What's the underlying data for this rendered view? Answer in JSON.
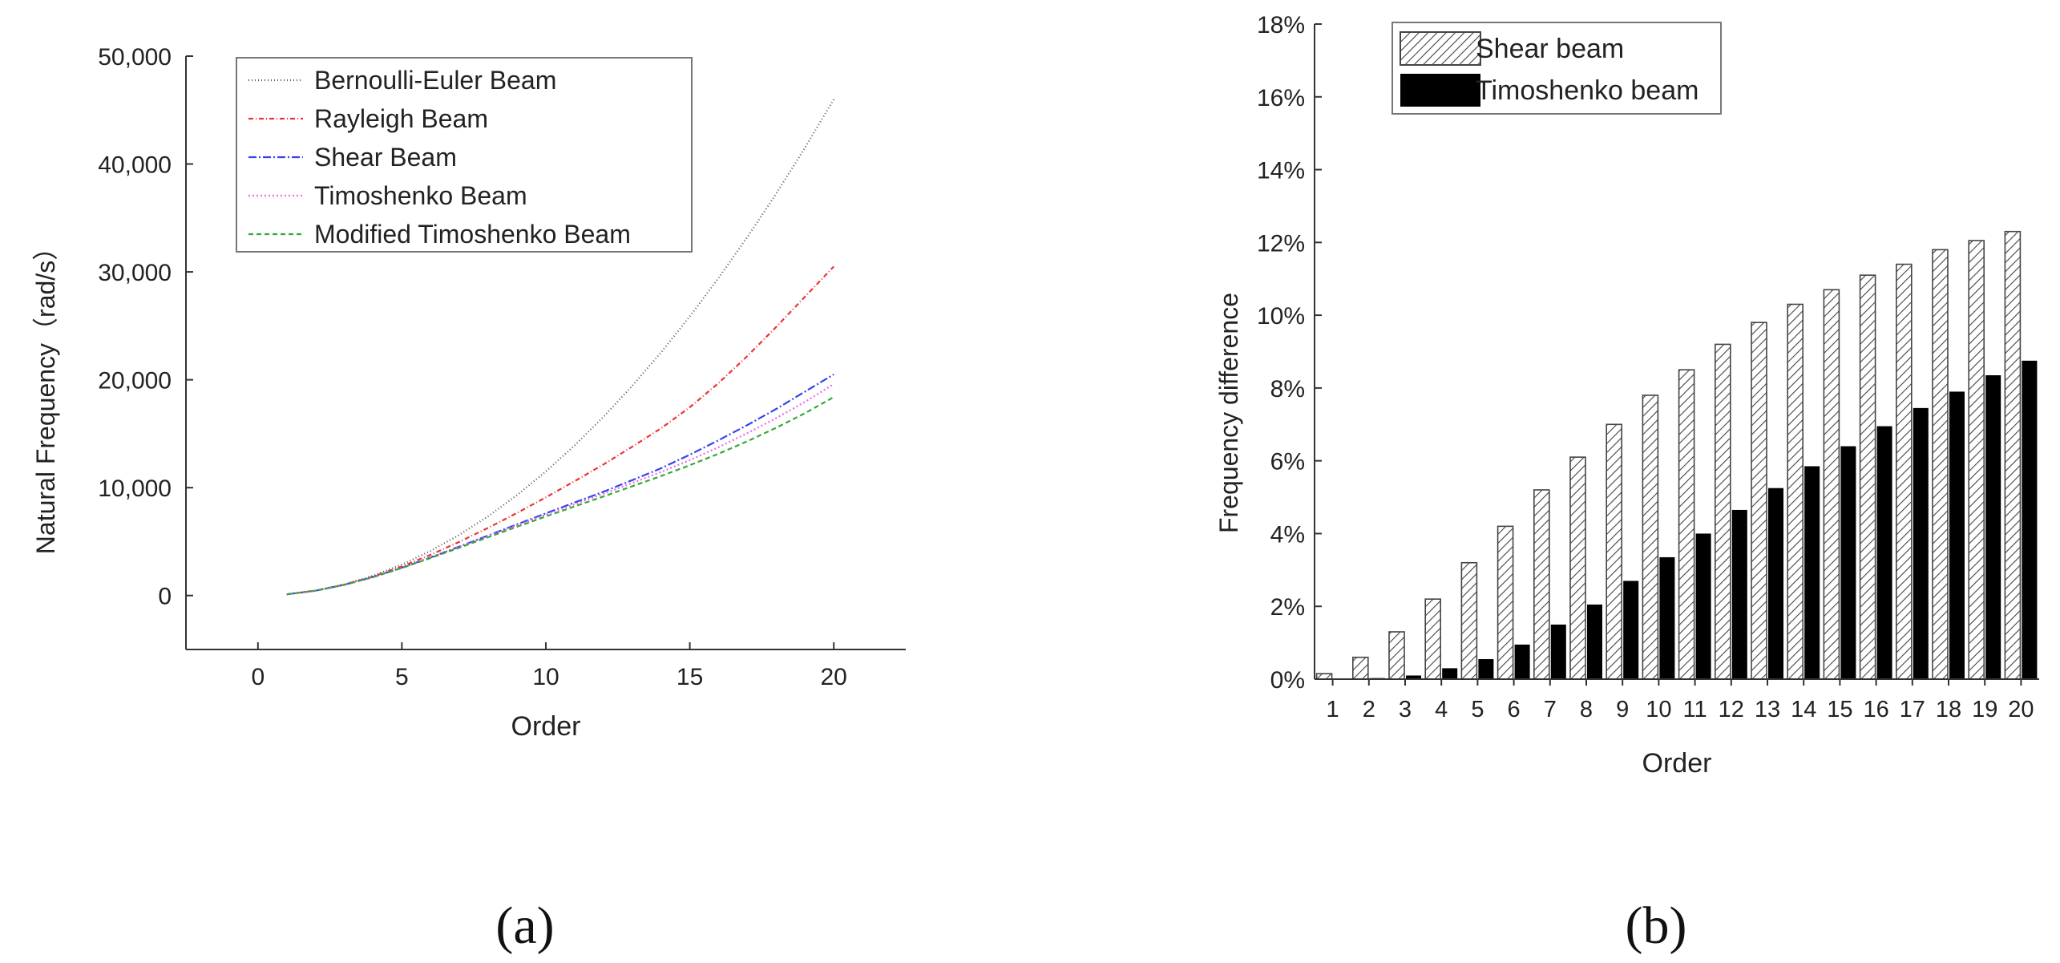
{
  "chart_data": [
    {
      "type": "line",
      "xlabel": "Order",
      "ylabel": "Natural Frequency（rad/s）",
      "xlim": [
        -2.5,
        22.5
      ],
      "ylim": [
        -5000,
        50000
      ],
      "xticks": [
        0,
        5,
        10,
        15,
        20
      ],
      "xtick_labels": [
        "0",
        "5",
        "10",
        "15",
        "20"
      ],
      "yticks": [
        0,
        10000,
        20000,
        30000,
        40000,
        50000
      ],
      "ytick_labels": [
        "0",
        "10,000",
        "20,000",
        "30,000",
        "40,000",
        "50,000"
      ],
      "legend_position": "top",
      "x": [
        1,
        2,
        3,
        4,
        5,
        6,
        7,
        8,
        9,
        10,
        11,
        12,
        13,
        14,
        15,
        16,
        17,
        18,
        19,
        20
      ],
      "series": [
        {
          "name": "Bernoulli-Euler Beam",
          "color": "#555555",
          "dash": "1 3",
          "values": [
            115,
            460,
            1035,
            1840,
            2875,
            4140,
            5635,
            7360,
            9315,
            11500,
            13915,
            16560,
            19435,
            22540,
            25875,
            29440,
            33235,
            37260,
            41515,
            46000
          ]
        },
        {
          "name": "Rayleigh Beam",
          "color": "#ee3333",
          "dash": "6 3 1 3",
          "values": [
            115,
            455,
            1010,
            1770,
            2700,
            3780,
            4980,
            6280,
            7660,
            9100,
            10600,
            12150,
            13800,
            15500,
            17450,
            19700,
            22200,
            24900,
            27700,
            30500
          ]
        },
        {
          "name": "Shear Beam",
          "color": "#3344ee",
          "dash": "10 3 2 3",
          "values": [
            115,
            450,
            1000,
            1720,
            2580,
            3530,
            4540,
            5570,
            6600,
            7620,
            8620,
            9620,
            10700,
            11800,
            13050,
            14400,
            15800,
            17300,
            18900,
            20500
          ]
        },
        {
          "name": "Timoshenko Beam",
          "color": "#ee66ee",
          "dash": "2 3",
          "values": [
            115,
            450,
            995,
            1715,
            2570,
            3510,
            4500,
            5510,
            6510,
            7500,
            8470,
            9430,
            10430,
            11450,
            12550,
            13750,
            15050,
            16450,
            17950,
            19600
          ]
        },
        {
          "name": "Modified Timoshenko Beam",
          "color": "#33aa33",
          "dash": "6 4",
          "values": [
            115,
            448,
            990,
            1705,
            2550,
            3480,
            4440,
            5410,
            6380,
            7330,
            8260,
            9180,
            10130,
            11080,
            12080,
            13150,
            14300,
            15550,
            16900,
            18400
          ]
        }
      ]
    },
    {
      "type": "bar",
      "xlabel": "Order",
      "ylabel": "Frequency difference",
      "ylim": [
        0,
        18
      ],
      "yticks": [
        0,
        2,
        4,
        6,
        8,
        10,
        12,
        14,
        16,
        18
      ],
      "ytick_labels": [
        "0%",
        "2%",
        "4%",
        "6%",
        "8%",
        "10%",
        "12%",
        "14%",
        "16%",
        "18%"
      ],
      "legend_position": "top-left",
      "categories": [
        "1",
        "2",
        "3",
        "4",
        "5",
        "6",
        "7",
        "8",
        "9",
        "10",
        "11",
        "12",
        "13",
        "14",
        "15",
        "16",
        "17",
        "18",
        "19",
        "20"
      ],
      "series": [
        {
          "name": "Shear beam",
          "fill": "hatched",
          "values": [
            0.15,
            0.6,
            1.3,
            2.2,
            3.2,
            4.2,
            5.2,
            6.1,
            7.0,
            7.8,
            8.5,
            9.2,
            9.8,
            10.3,
            10.7,
            11.1,
            11.4,
            11.8,
            12.05,
            12.3
          ]
        },
        {
          "name": "Timoshenko beam",
          "fill": "#000000",
          "values": [
            0,
            0.03,
            0.1,
            0.3,
            0.55,
            0.95,
            1.5,
            2.05,
            2.7,
            3.35,
            4.0,
            4.65,
            5.25,
            5.85,
            6.4,
            6.95,
            7.45,
            7.9,
            8.35,
            8.75
          ]
        }
      ]
    }
  ],
  "captions": {
    "a": "(a)",
    "b": "(b)"
  }
}
